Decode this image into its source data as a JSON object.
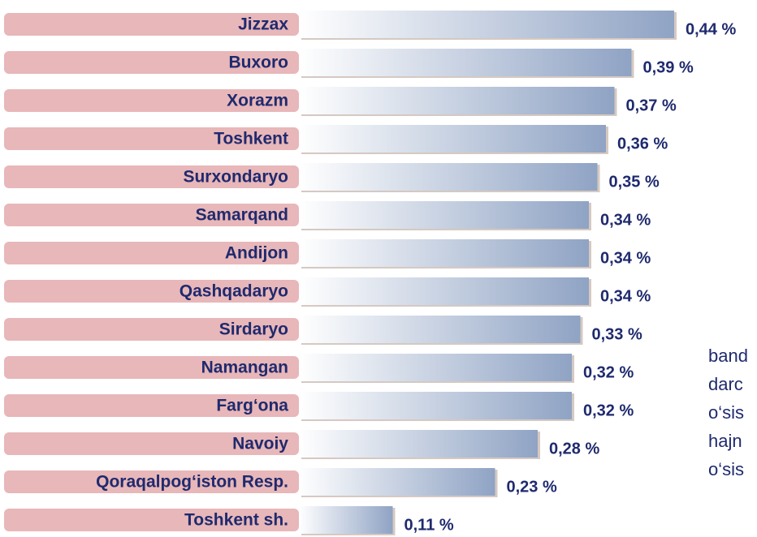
{
  "chart_data": {
    "type": "bar",
    "orientation": "horizontal",
    "categories": [
      "Jizzax",
      "Buxoro",
      "Xorazm",
      "Toshkent",
      "Surxondaryo",
      "Samarqand",
      "Andijon",
      "Qashqadaryo",
      "Sirdaryo",
      "Namangan",
      "Farg‘ona",
      "Navoiy",
      "Qoraqalpog‘iston Resp.",
      "Toshkent sh."
    ],
    "values": [
      0.44,
      0.39,
      0.37,
      0.36,
      0.35,
      0.34,
      0.34,
      0.34,
      0.33,
      0.32,
      0.32,
      0.28,
      0.23,
      0.11
    ],
    "value_labels": [
      "0,44 %",
      "0,39 %",
      "0,37 %",
      "0,36 %",
      "0,35 %",
      "0,34 %",
      "0,34 %",
      "0,34 %",
      "0,33 %",
      "0,32 %",
      "0,32 %",
      "0,28 %",
      "0,23 %",
      "0,11 %"
    ],
    "color": "#8fa3c4",
    "label_box_color": "#e8b7b9",
    "annotations": [
      "band",
      "darc",
      "o‘sis",
      "hajn",
      "o‘sis"
    ]
  }
}
